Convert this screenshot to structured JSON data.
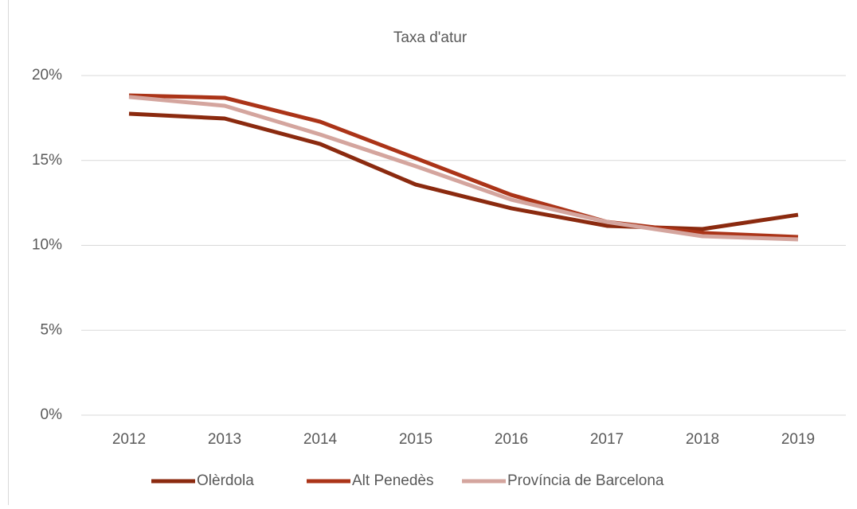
{
  "chart_data": {
    "type": "line",
    "title": "Taxa d'atur",
    "categories": [
      "2012",
      "2013",
      "2014",
      "2015",
      "2016",
      "2017",
      "2018",
      "2019"
    ],
    "series": [
      {
        "name": "Olèrdola",
        "color": "#8b2a0f",
        "values": [
          17.75,
          17.47,
          15.97,
          13.58,
          12.18,
          11.15,
          10.96,
          11.8
        ]
      },
      {
        "name": "Alt Penedès",
        "color": "#ab3418",
        "values": [
          18.83,
          18.69,
          17.28,
          15.13,
          12.97,
          11.38,
          10.73,
          10.49
        ]
      },
      {
        "name": "Província de Barcelona",
        "color": "#d4a59e",
        "values": [
          18.74,
          18.22,
          16.53,
          14.66,
          12.69,
          11.38,
          10.54,
          10.35
        ]
      }
    ],
    "ylim": [
      0,
      20
    ],
    "yticks": [
      {
        "value": 0,
        "label": "0%"
      },
      {
        "value": 5,
        "label": "5%"
      },
      {
        "value": 10,
        "label": "10%"
      },
      {
        "value": 15,
        "label": "15%"
      },
      {
        "value": 20,
        "label": "20%"
      }
    ],
    "grid": true,
    "legend": "bottom"
  }
}
